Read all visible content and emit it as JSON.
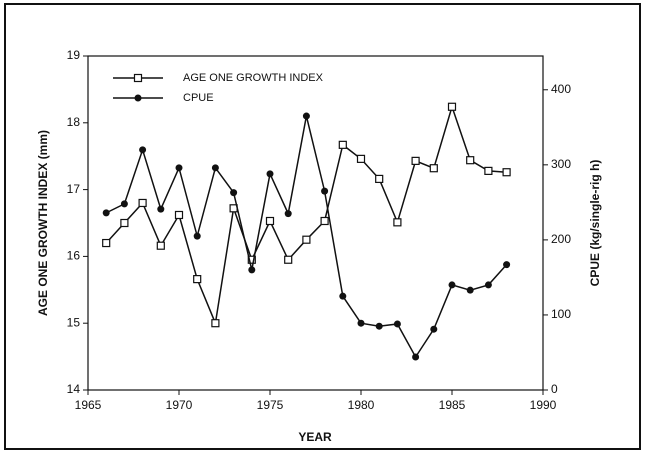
{
  "chart_data": {
    "type": "line",
    "xlabel": "YEAR",
    "ylabel": "AGE ONE GROWTH INDEX (mm)",
    "y2label": "CPUE (kg/single-rig h)",
    "x": [
      1966,
      1967,
      1968,
      1969,
      1970,
      1971,
      1972,
      1973,
      1974,
      1975,
      1976,
      1977,
      1978,
      1979,
      1980,
      1981,
      1982,
      1983,
      1984,
      1985,
      1986,
      1987,
      1988
    ],
    "series": [
      {
        "name": "AGE ONE GROWTH INDEX",
        "color": "#111111",
        "marker": "square",
        "values": [
          16.2,
          16.5,
          16.8,
          16.16,
          16.62,
          15.66,
          15.0,
          16.72,
          15.95,
          16.53,
          15.95,
          16.25,
          16.53,
          17.67,
          17.46,
          17.16,
          16.51,
          17.43,
          17.32,
          18.24,
          17.44,
          17.28,
          17.26
        ]
      },
      {
        "name": "CPUE",
        "color": "#111111",
        "marker": "circle",
        "axis": "y2",
        "values": [
          236,
          248,
          320,
          241,
          296,
          205,
          296,
          263,
          160,
          288,
          235,
          365,
          265,
          125,
          89,
          85,
          88,
          44,
          81,
          140,
          133,
          140,
          167
        ]
      }
    ],
    "xlim": [
      1965,
      1990
    ],
    "xticks": [
      1965,
      1970,
      1975,
      1980,
      1985,
      1990
    ],
    "ylim": [
      14,
      19
    ],
    "yticks": [
      14,
      15,
      16,
      17,
      18,
      19
    ],
    "y2lim": [
      0,
      445
    ],
    "y2ticks": [
      0,
      100,
      200,
      300,
      400
    ],
    "legend": "upper-left",
    "grid": false
  }
}
